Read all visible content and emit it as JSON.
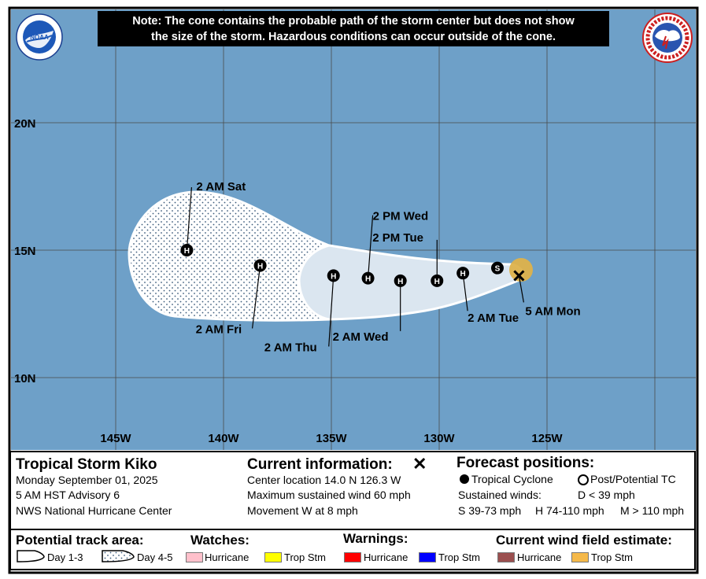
{
  "note": {
    "line1": "Note: The cone contains the probable path of the storm center but does not show",
    "line2": "the size of the storm. Hazardous conditions can occur outside of the cone."
  },
  "logos": {
    "left": "noaa-logo",
    "right": "nws-logo",
    "left_text": "NOAA"
  },
  "colors": {
    "ocean": "#6ea0c8",
    "cone_day13": "#dbe6f0",
    "cone_day45": "#ffffff",
    "trop_storm_wind": "#ddb24b",
    "grid": "#4a4a4a",
    "hurricane_watch": "#ffc0cb",
    "trop_storm_watch": "#ffff00",
    "hurricane_warning": "#ff0000",
    "trop_storm_warning": "#0000ff",
    "hurricane_wind": "#9b4f4f",
    "trop_storm_wind_legend": "#f5b94a"
  },
  "map": {
    "lat_labels": [
      "20N",
      "15N",
      "10N"
    ],
    "lon_labels": [
      "145W",
      "140W",
      "135W",
      "130W",
      "125W"
    ],
    "current_position": {
      "lat": 14.0,
      "lon": -126.3,
      "label": "5 AM Mon",
      "icon": "x-mark-icon"
    },
    "forecast_points": [
      {
        "lat": 14.3,
        "lon": -127.3,
        "type": "S",
        "label": ""
      },
      {
        "lat": 14.1,
        "lon": -128.9,
        "type": "H",
        "label": "2 AM Tue"
      },
      {
        "lat": 13.8,
        "lon": -130.1,
        "type": "H",
        "label": "2 PM Tue"
      },
      {
        "lat": 13.8,
        "lon": -131.8,
        "type": "H",
        "label": "2 AM Wed"
      },
      {
        "lat": 13.9,
        "lon": -133.3,
        "type": "H",
        "label": "2 PM Wed"
      },
      {
        "lat": 14.0,
        "lon": -134.9,
        "type": "H",
        "label": "2 AM Thu"
      },
      {
        "lat": 14.4,
        "lon": -138.3,
        "type": "H",
        "label": "2 AM Fri"
      },
      {
        "lat": 15.0,
        "lon": -141.7,
        "type": "H",
        "label": "2 AM Sat"
      }
    ]
  },
  "storm": {
    "name": "Tropical Storm Kiko",
    "date": "Monday September 01, 2025",
    "advisory": "5 AM HST Advisory 6",
    "center": "NWS National Hurricane Center"
  },
  "current_info": {
    "title": "Current information:",
    "location": "Center location 14.0 N 126.3 W",
    "wind": "Maximum sustained wind 60 mph",
    "movement": "Movement W at 8 mph"
  },
  "forecast_legend": {
    "title": "Forecast positions:",
    "tropical": "Tropical Cyclone",
    "post": "Post/Potential TC",
    "sustained": "Sustained winds:",
    "d": "D < 39 mph",
    "s": "S 39-73 mph",
    "h": "H 74-110 mph",
    "m": "M > 110 mph"
  },
  "track_legend": {
    "title": "Potential track area:",
    "day13": "Day 1-3",
    "day45": "Day 4-5"
  },
  "watches": {
    "title": "Watches:",
    "hurricane": "Hurricane",
    "trop": "Trop Stm"
  },
  "warnings": {
    "title": "Warnings:",
    "hurricane": "Hurricane",
    "trop": "Trop Stm"
  },
  "wind_field": {
    "title": "Current wind field estimate:",
    "hurricane": "Hurricane",
    "trop": "Trop Stm"
  }
}
